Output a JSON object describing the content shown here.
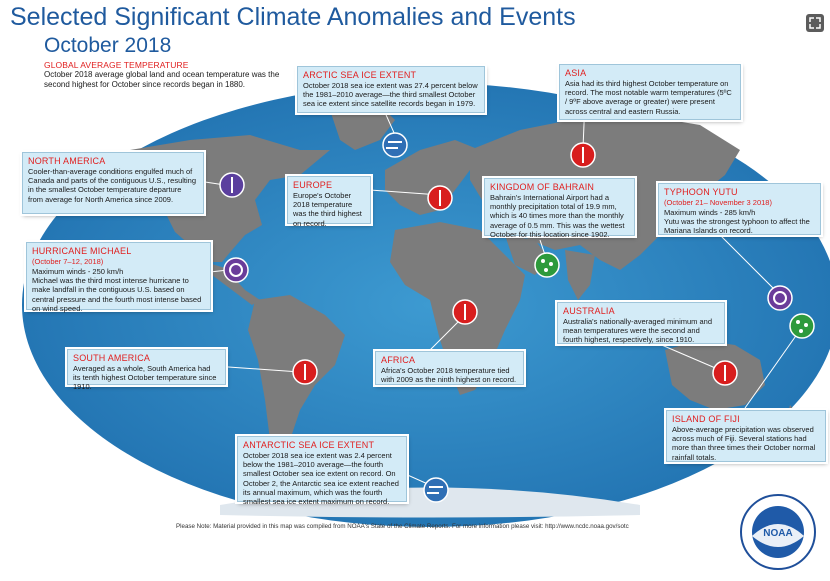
{
  "title": "Selected Significant Climate Anomalies and Events",
  "subtitle": "October 2018",
  "global": {
    "heading": "GLOBAL AVERAGE TEMPERATURE",
    "text": "October 2018 average global land and ocean temperature was the second highest for October since records began in 1880."
  },
  "boxes": {
    "arctic": {
      "heading": "ARCTIC SEA ICE EXTENT",
      "text": "October 2018 sea ice extent was 27.4 percent below the 1981–2010 average—the third smallest October sea ice extent since satellite records began in 1979."
    },
    "asia": {
      "heading": "ASIA",
      "text": "Asia had its third highest October temperature on record. The most notable warm temperatures (5ºC / 9ºF above average or greater) were present across central and eastern Russia."
    },
    "north_america": {
      "heading": "NORTH AMERICA",
      "text": "Cooler-than-average conditions engulfed much of Canada and parts of the contiguous U.S., resulting in the smallest October temperature departure from average for North America since 2009."
    },
    "europe": {
      "heading": "EUROPE",
      "text": "Europe's October 2018 temperature was the third highest on record."
    },
    "bahrain": {
      "heading": "KINGDOM OF BAHRAIN",
      "text": "Bahrain's International Airport had a monthly precipitation total of 19.9 mm, which is 40 times more than the monthly average of 0.5 mm. This was the wettest October for this location since 1902."
    },
    "yutu": {
      "heading": "TYPHOON YUTU",
      "dates": "(October 21– November 3 2018)",
      "text": "Maximum winds - 285 km/h\nYutu was the strongest typhoon to affect the Mariana Islands on record."
    },
    "michael": {
      "heading": "HURRICANE MICHAEL",
      "dates": "(October 7–12, 2018)",
      "text": "Maximum winds - 250 km/h\nMichael was the third most intense hurricane to make landfall in the contiguous U.S. based on central pressure and the fourth most intense based on wind speed."
    },
    "australia": {
      "heading": "AUSTRALIA",
      "text": "Australia's nationally-averaged minimum and mean temperatures were the second and fourth highest, respectively, since 1910."
    },
    "south_america": {
      "heading": "SOUTH AMERICA",
      "text": "Averaged as a whole, South America had its tenth highest October temperature since 1910."
    },
    "africa": {
      "heading": "AFRICA",
      "text": "Africa's October 2018 temperature tied with 2009 as the ninth highest on record."
    },
    "fiji": {
      "heading": "ISLAND OF FIJI",
      "text": "Above-average precipitation was observed across much of Fiji. Several stations had more than three times their October normal rainfall totals."
    },
    "antarctic": {
      "heading": "ANTARCTIC SEA ICE EXTENT",
      "text": "October 2018 sea ice extent was 2.4 percent below the 1981–2010 average—the fourth smallest October sea ice extent on record. On October 2, the Antarctic sea ice extent reached its annual maximum, which was the fourth smallest sea ice extent maximum on record."
    }
  },
  "note": "Please Note: Material provided in this map was compiled from NOAA's State of the Climate Reports. For more information please visit: http://www.ncdc.noaa.gov/sotc",
  "logo_text": "NOAA",
  "colors": {
    "ocean": "#2a86bf",
    "land": "#7f7f7f",
    "box": "#d3ebf7",
    "warm": "#d81e1e",
    "cold": "#2f6fb5",
    "wet": "#2e9a3c",
    "storm": "#6a3d9a"
  }
}
